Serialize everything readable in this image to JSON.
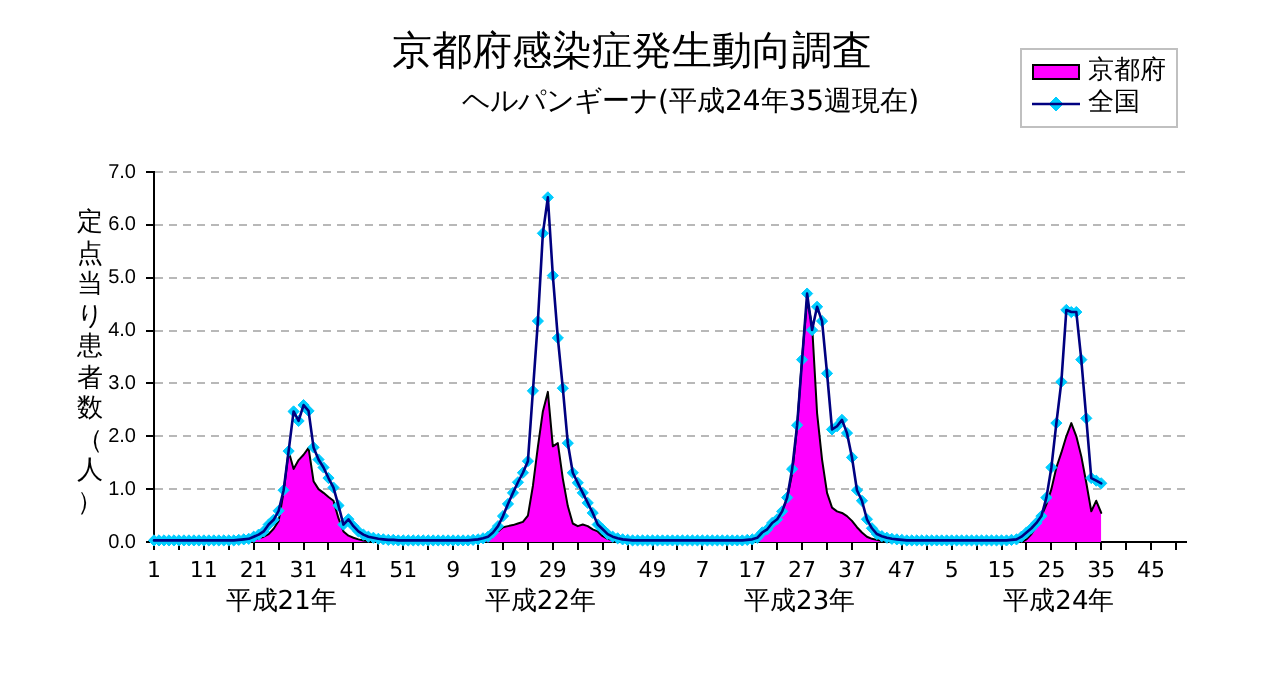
{
  "chart_data": {
    "type": "line",
    "title": "京都府感染症発生動向調査",
    "subtitle": "ヘルパンギーナ(平成24年35週現在)",
    "ylabel": "定点当り患者数（人）",
    "annotations": [
      "平成21年",
      "平成22年",
      "平成23年",
      "平成24年"
    ],
    "categories": [
      "1",
      null,
      null,
      null,
      null,
      null,
      null,
      null,
      null,
      null,
      "11",
      null,
      null,
      null,
      null,
      null,
      null,
      null,
      null,
      null,
      "21",
      null,
      null,
      null,
      null,
      null,
      null,
      null,
      null,
      null,
      "31",
      null,
      null,
      null,
      null,
      null,
      null,
      null,
      null,
      null,
      "41",
      null,
      null,
      null,
      null,
      null,
      null,
      null,
      null,
      null,
      "51",
      null,
      null,
      null,
      null,
      null,
      null,
      null,
      null,
      null,
      "9",
      null,
      null,
      null,
      null,
      null,
      null,
      null,
      null,
      null,
      "19",
      null,
      null,
      null,
      null,
      null,
      null,
      null,
      null,
      null,
      "29",
      null,
      null,
      null,
      null,
      null,
      null,
      null,
      null,
      null,
      "39",
      null,
      null,
      null,
      null,
      null,
      null,
      null,
      null,
      null,
      "49",
      null,
      null,
      null,
      null,
      null,
      null,
      null,
      null,
      null,
      "7",
      null,
      null,
      null,
      null,
      null,
      null,
      null,
      null,
      null,
      "17",
      null,
      null,
      null,
      null,
      null,
      null,
      null,
      null,
      null,
      "27",
      null,
      null,
      null,
      null,
      null,
      null,
      null,
      null,
      null,
      "37",
      null,
      null,
      null,
      null,
      null,
      null,
      null,
      null,
      null,
      "47",
      null,
      null,
      null,
      null,
      null,
      null,
      null,
      null,
      null,
      "5",
      null,
      null,
      null,
      null,
      null,
      null,
      null,
      null,
      null,
      "15",
      null,
      null,
      null,
      null,
      null,
      null,
      null,
      null,
      null,
      "25",
      null,
      null,
      null,
      null,
      null,
      null,
      null,
      null,
      null,
      "35",
      null,
      null,
      null,
      null,
      null,
      null,
      null,
      null,
      null,
      "45",
      null,
      null,
      null,
      null,
      null,
      null,
      null
    ],
    "series": [
      {
        "name": "京都府",
        "type": "area",
        "marker": "none",
        "color": "#ff00ff",
        "values": [
          0,
          0,
          0,
          0,
          0,
          0,
          0,
          0,
          0,
          0,
          0,
          0,
          0,
          0,
          0,
          0,
          0,
          0,
          0,
          0.02,
          0.04,
          0.07,
          0.1,
          0.15,
          0.25,
          0.4,
          0.95,
          1.72,
          1.38,
          1.55,
          1.65,
          1.78,
          1.15,
          1.0,
          0.93,
          0.85,
          0.78,
          0.45,
          0.2,
          0.12,
          0.08,
          0.05,
          0.03,
          0.02,
          0,
          0,
          0,
          0,
          0,
          0,
          0,
          0,
          0,
          0,
          0,
          0,
          0,
          0,
          0,
          0,
          0,
          0,
          0,
          0,
          0,
          0,
          0,
          0.05,
          0.1,
          0.2,
          0.28,
          0.3,
          0.32,
          0.35,
          0.38,
          0.5,
          1.06,
          1.8,
          2.47,
          2.84,
          1.81,
          1.87,
          1.2,
          0.68,
          0.35,
          0.3,
          0.33,
          0.3,
          0.24,
          0.2,
          0.11,
          0.06,
          0.03,
          0,
          0,
          0,
          0,
          0,
          0,
          0,
          0,
          0,
          0,
          0,
          0,
          0,
          0,
          0,
          0,
          0,
          0,
          0,
          0,
          0,
          0,
          0,
          0,
          0,
          0,
          0,
          0.02,
          0.05,
          0.15,
          0.24,
          0.33,
          0.43,
          0.6,
          0.82,
          1.3,
          2.19,
          3.5,
          4.58,
          4.1,
          2.44,
          1.56,
          0.93,
          0.65,
          0.58,
          0.55,
          0.49,
          0.4,
          0.28,
          0.18,
          0.1,
          0.06,
          0.04,
          0.02,
          0,
          0,
          0,
          0,
          0,
          0,
          0,
          0,
          0,
          0,
          0,
          0,
          0,
          0,
          0,
          0,
          0,
          0,
          0,
          0,
          0,
          0,
          0,
          0,
          0,
          0,
          0,
          0,
          0.05,
          0.15,
          0.3,
          0.49,
          0.71,
          1.0,
          1.41,
          1.69,
          2.0,
          2.25,
          2.0,
          1.62,
          1.12,
          0.58,
          0.78,
          0.55,
          null,
          null,
          null,
          null,
          null,
          null,
          null,
          null,
          null,
          null,
          null,
          null,
          null,
          null,
          null,
          null,
          null
        ]
      },
      {
        "name": "全国",
        "type": "line",
        "marker": "diamond",
        "color": "#00ccff",
        "values": [
          0.03,
          0.03,
          0.03,
          0.03,
          0.03,
          0.03,
          0.03,
          0.03,
          0.03,
          0.03,
          0.03,
          0.03,
          0.03,
          0.03,
          0.03,
          0.03,
          0.03,
          0.04,
          0.05,
          0.06,
          0.1,
          0.14,
          0.2,
          0.33,
          0.42,
          0.59,
          0.98,
          1.72,
          2.47,
          2.29,
          2.59,
          2.48,
          1.79,
          1.56,
          1.41,
          1.21,
          1.03,
          0.69,
          0.33,
          0.43,
          0.3,
          0.2,
          0.14,
          0.1,
          0.08,
          0.06,
          0.05,
          0.04,
          0.04,
          0.03,
          0.03,
          0.03,
          0.03,
          0.03,
          0.03,
          0.03,
          0.03,
          0.03,
          0.03,
          0.03,
          0.03,
          0.03,
          0.03,
          0.03,
          0.04,
          0.05,
          0.07,
          0.1,
          0.18,
          0.3,
          0.49,
          0.72,
          0.93,
          1.13,
          1.31,
          1.53,
          2.86,
          4.18,
          5.84,
          6.52,
          5.04,
          3.86,
          2.91,
          1.87,
          1.31,
          1.12,
          0.93,
          0.74,
          0.55,
          0.33,
          0.24,
          0.15,
          0.1,
          0.07,
          0.05,
          0.04,
          0.03,
          0.03,
          0.03,
          0.03,
          0.03,
          0.03,
          0.03,
          0.03,
          0.03,
          0.03,
          0.03,
          0.03,
          0.03,
          0.03,
          0.03,
          0.03,
          0.03,
          0.03,
          0.03,
          0.03,
          0.03,
          0.03,
          0.03,
          0.04,
          0.05,
          0.08,
          0.18,
          0.24,
          0.36,
          0.43,
          0.58,
          0.84,
          1.38,
          2.21,
          3.45,
          4.7,
          4.01,
          4.45,
          4.18,
          3.19,
          2.13,
          2.19,
          2.31,
          2.06,
          1.6,
          0.98,
          0.78,
          0.43,
          0.26,
          0.15,
          0.11,
          0.08,
          0.06,
          0.05,
          0.04,
          0.03,
          0.03,
          0.03,
          0.03,
          0.03,
          0.03,
          0.03,
          0.03,
          0.03,
          0.03,
          0.03,
          0.03,
          0.03,
          0.03,
          0.03,
          0.03,
          0.03,
          0.03,
          0.03,
          0.03,
          0.03,
          0.04,
          0.05,
          0.1,
          0.18,
          0.26,
          0.36,
          0.49,
          0.84,
          1.41,
          2.25,
          3.03,
          4.39,
          4.35,
          4.35,
          3.45,
          2.34,
          1.21,
          1.16,
          1.11,
          null,
          null,
          null,
          null,
          null,
          null,
          null,
          null,
          null,
          null,
          null,
          null,
          null,
          null,
          null,
          null,
          null
        ]
      }
    ],
    "ylim": [
      0,
      7
    ],
    "yticks": [
      {
        "value": 0,
        "label": "0.0"
      },
      {
        "value": 1,
        "label": "1.0"
      },
      {
        "value": 2,
        "label": "2.0"
      },
      {
        "value": 3,
        "label": "3.0"
      },
      {
        "value": 4,
        "label": "4.0"
      },
      {
        "value": 5,
        "label": "5.0"
      },
      {
        "value": 6,
        "label": "6.0"
      },
      {
        "value": 7,
        "label": "7.0"
      }
    ],
    "grid": "y",
    "legend": "top right"
  }
}
